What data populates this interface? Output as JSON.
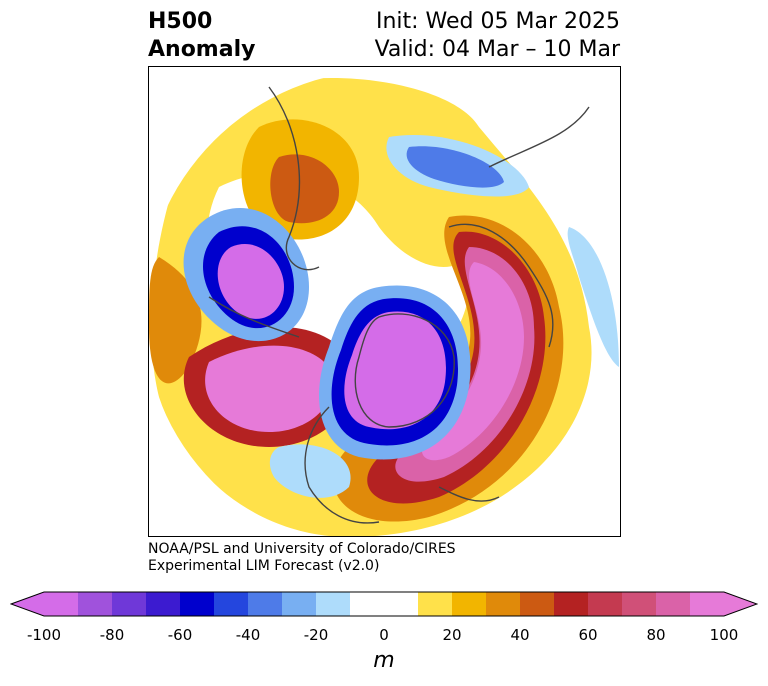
{
  "title": {
    "left_line1": "H500",
    "left_line2": "Anomaly",
    "right_line1": "Init: Wed 05 Mar 2025",
    "right_line2": "Valid: 04 Mar – 10 Mar"
  },
  "credit": {
    "line1": "NOAA/PSL and University of Colorado/CIRES",
    "line2": "Experimental LIM Forecast (v2.0)"
  },
  "colorbar": {
    "unit": "m",
    "min": -100,
    "max": 100,
    "ticks": [
      "-100",
      "-80",
      "-60",
      "-40",
      "-20",
      "0",
      "20",
      "40",
      "60",
      "80",
      "100"
    ],
    "levels": [
      -100,
      -90,
      -80,
      -70,
      -60,
      -50,
      -40,
      -30,
      -20,
      -10,
      10,
      20,
      30,
      40,
      50,
      60,
      70,
      80,
      90,
      100
    ],
    "colors": [
      "#d46ce8",
      "#a052dc",
      "#6f38d8",
      "#3c1bd0",
      "#0000cd",
      "#2446de",
      "#4e7be8",
      "#78aff2",
      "#aedcfb",
      "#ffffff",
      "#ffe14a",
      "#f2b500",
      "#e08a0a",
      "#cc5a12",
      "#b42222",
      "#c43a50",
      "#d05078",
      "#da62a8",
      "#e67ad8"
    ]
  },
  "map": {
    "projection": "north-polar-stereographic",
    "field": "500 hPa geopotential height anomaly"
  }
}
